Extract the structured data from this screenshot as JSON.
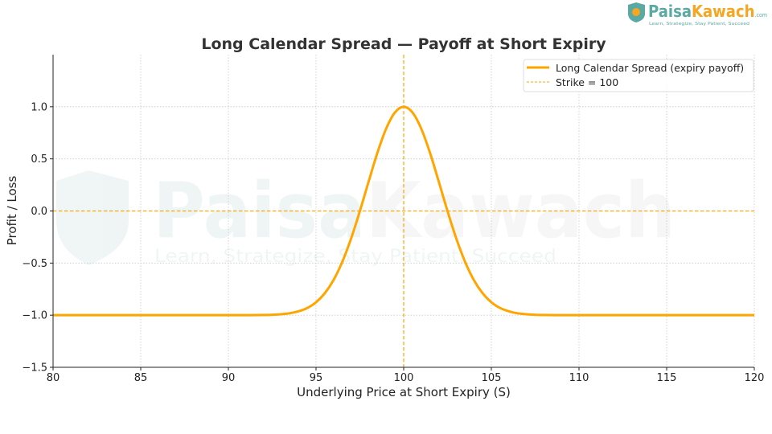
{
  "brand": {
    "name_a": "Paisa",
    "name_b": "Kawach",
    "suffix": ".com",
    "tagline": "Learn, Strategize, Stay Patient, Succeed"
  },
  "colors": {
    "series": "#FFA500",
    "strike": "#FFA500",
    "brand_teal": "#5aa9a3",
    "brand_orange": "#f5a623"
  },
  "chart_data": {
    "type": "line",
    "title": "Long Calendar Spread — Payoff at Short Expiry",
    "xlabel": "Underlying Price at Short Expiry (S)",
    "ylabel": "Profit / Loss",
    "xlim": [
      80,
      120
    ],
    "ylim": [
      -1.5,
      1.5
    ],
    "xticks": [
      80,
      85,
      90,
      95,
      100,
      105,
      110,
      115,
      120
    ],
    "yticks": [
      -1.5,
      -1.0,
      -0.5,
      0.0,
      0.5,
      1.0
    ],
    "ytick_labels": [
      "−1.5",
      "−1.0",
      "−0.5",
      "0.0",
      "0.5",
      "1.0"
    ],
    "grid": true,
    "legend_position": "top-right",
    "series": [
      {
        "name": "Long Calendar Spread (expiry payoff)",
        "style": "solid",
        "x": [
          80,
          90,
          91,
          92,
          92.5,
          93,
          93.5,
          94,
          94.5,
          95,
          95.5,
          96,
          96.5,
          97,
          97.5,
          98,
          98.5,
          99,
          99.5,
          100,
          100.5,
          101,
          101.5,
          102,
          102.5,
          103,
          103.5,
          104,
          104.5,
          105,
          105.5,
          106,
          106.5,
          107,
          107.5,
          108,
          109,
          110,
          120
        ],
        "y": [
          -1.0,
          -1.0,
          -1.0,
          -0.998,
          -0.996,
          -0.991,
          -0.982,
          -0.963,
          -0.931,
          -0.876,
          -0.789,
          -0.662,
          -0.487,
          -0.264,
          -0.001,
          0.282,
          0.558,
          0.79,
          0.945,
          1.0,
          0.945,
          0.79,
          0.558,
          0.282,
          -0.001,
          -0.264,
          -0.487,
          -0.662,
          -0.789,
          -0.876,
          -0.931,
          -0.963,
          -0.982,
          -0.991,
          -0.996,
          -0.998,
          -1.0,
          -1.0,
          -1.0
        ]
      }
    ],
    "reference_lines": [
      {
        "name": "Strike = 100",
        "orientation": "vertical",
        "value": 100,
        "style": "dashed"
      },
      {
        "orientation": "horizontal",
        "value": 0,
        "style": "dashed"
      }
    ]
  }
}
